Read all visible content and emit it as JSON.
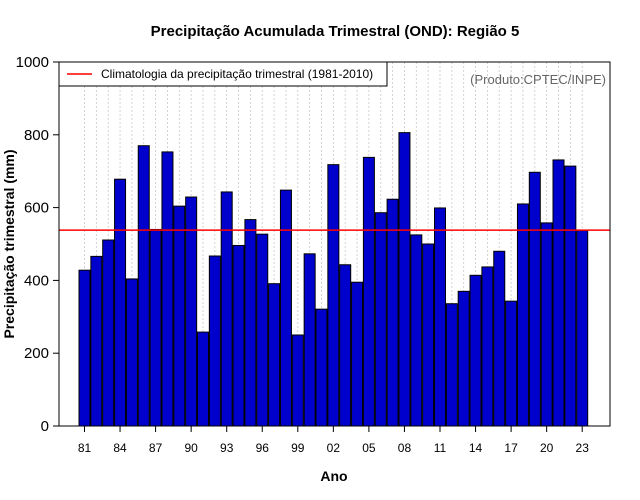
{
  "chart_data": {
    "type": "bar",
    "title": "Precipitação Acumulada Trimestral (OND): Região 5",
    "xlabel": "Ano",
    "ylabel": "Precipitação trimestral (mm)",
    "ylim": [
      0,
      1000
    ],
    "yticks": [
      0,
      200,
      400,
      600,
      800,
      1000
    ],
    "xtick_labels": [
      "81",
      "84",
      "87",
      "90",
      "93",
      "96",
      "99",
      "02",
      "05",
      "08",
      "11",
      "14",
      "17",
      "20",
      "23"
    ],
    "years": [
      1981,
      1982,
      1983,
      1984,
      1985,
      1986,
      1987,
      1988,
      1989,
      1990,
      1991,
      1992,
      1993,
      1994,
      1995,
      1996,
      1997,
      1998,
      1999,
      2000,
      2001,
      2002,
      2003,
      2004,
      2005,
      2006,
      2007,
      2008,
      2009,
      2010,
      2011,
      2012,
      2013,
      2014,
      2015,
      2016,
      2017,
      2018,
      2019,
      2020,
      2021,
      2022,
      2023
    ],
    "values": [
      428,
      466,
      511,
      678,
      404,
      770,
      540,
      753,
      604,
      629,
      258,
      467,
      643,
      496,
      567,
      527,
      391,
      648,
      250,
      473,
      321,
      718,
      443,
      395,
      738,
      586,
      623,
      806,
      525,
      500,
      599,
      336,
      370,
      414,
      437,
      480,
      343,
      610,
      697,
      558,
      731,
      714,
      537
    ],
    "climatology": {
      "label": "Climatologia da precipitação trimestral (1981-2010)",
      "value": 538,
      "color": "#ff0000"
    },
    "bar_color": "#0000cc",
    "grid": "vertical dotted",
    "legend_position": "top-left",
    "credit": "(Produto:CPTEC/INPE)"
  }
}
